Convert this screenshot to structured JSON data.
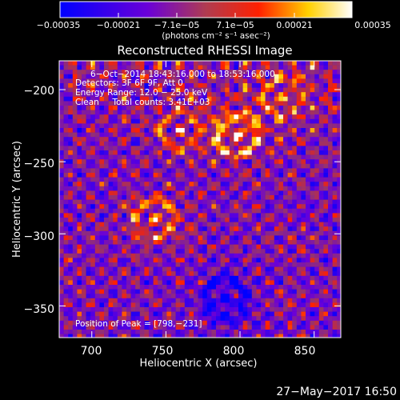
{
  "chart_data": {
    "type": "heatmap",
    "title": "Reconstructed RHESSI Image",
    "xlabel": "Heliocentric X (arcsec)",
    "ylabel": "Heliocentric Y (arcsec)",
    "xlim": [
      678,
      868
    ],
    "ylim": [
      -372,
      -180
    ],
    "x_ticks": [
      {
        "value": 700,
        "label": "700"
      },
      {
        "value": 750,
        "label": "750"
      },
      {
        "value": 800,
        "label": "800"
      },
      {
        "value": 850,
        "label": "850"
      }
    ],
    "y_ticks": [
      {
        "value": -200,
        "label": "−200"
      },
      {
        "value": -250,
        "label": "−250"
      },
      {
        "value": -300,
        "label": "−300"
      },
      {
        "value": -350,
        "label": "−350"
      }
    ],
    "colorbar": {
      "range": [
        -0.00035,
        0.00035
      ],
      "tick_labels": [
        "−0.00035",
        "−0.00021",
        "−7.1e−05",
        "7.1e−05",
        "0.00021",
        "0.00035"
      ],
      "unit_label": "(photons cm⁻² s⁻¹ asec⁻²)",
      "colors": [
        "#0000ff",
        "#6a00d8",
        "#b03c50",
        "#ff2000",
        "#ffd000",
        "#ffffff"
      ]
    },
    "annotations": {
      "time": "6−Oct−2014 18:43:16.000 to 18:53:16.000",
      "detectors": "Detectors: 3F 6F 9F, Att 0",
      "energy": "Energy Range: 12.0 − 25.0 keV",
      "clean": "Clean     Total counts: 3.41E+03",
      "peak": "Position of Peak = [798,−231]"
    },
    "features": [
      {
        "x": 742,
        "y": -290,
        "intensity": 0.75
      },
      {
        "x": 798,
        "y": -231,
        "intensity": 1.0
      },
      {
        "x": 760,
        "y": -228,
        "intensity": 0.55
      },
      {
        "x": 830,
        "y": -205,
        "intensity": 0.6
      },
      {
        "x": 790,
        "y": -345,
        "intensity": -0.8
      }
    ]
  },
  "footer": {
    "date": "27−May−2017 16:50"
  }
}
